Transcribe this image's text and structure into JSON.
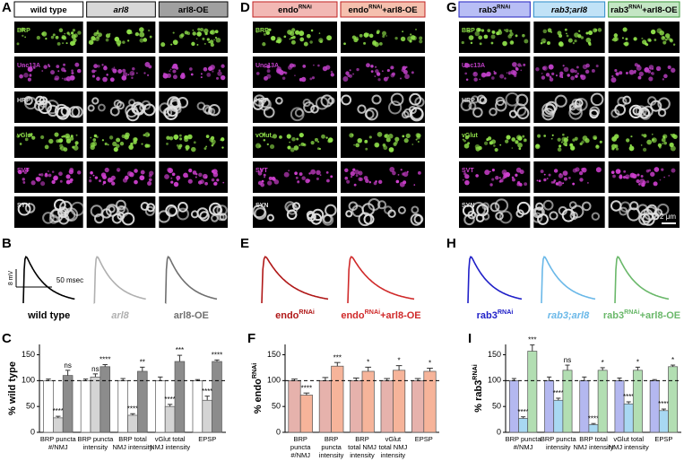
{
  "channels": [
    {
      "name": "BRP",
      "color": "#8fe04a"
    },
    {
      "name": "Unc13A",
      "color": "#c040c8"
    },
    {
      "name": "HRP",
      "color": "#e0e0e0"
    },
    {
      "name": "vGlut",
      "color": "#8fe04a"
    },
    {
      "name": "SVT",
      "color": "#d040d0"
    },
    {
      "name": "SYN",
      "color": "#e0e0e0"
    }
  ],
  "imaging": [
    {
      "letter": "A",
      "headers": [
        {
          "parts": [
            "wild type"
          ],
          "fill": "#ffffff",
          "border": "#000000"
        },
        {
          "parts": [
            "arl8"
          ],
          "italic": true,
          "fill": "#d8d8d8",
          "border": "#000000"
        },
        {
          "parts": [
            "arl8-OE"
          ],
          "fill": "#a0a0a0",
          "border": "#000000"
        }
      ]
    },
    {
      "letter": "D",
      "headers": [
        {
          "parts": [
            "endo",
            "RNAi"
          ],
          "fill": "#f2b8b4",
          "border": "#c02020"
        },
        {
          "parts": [
            "endo",
            "RNAi",
            "+arl8-OE"
          ],
          "fill": "#f5c0ae",
          "border": "#c02020"
        }
      ]
    },
    {
      "letter": "G",
      "headers": [
        {
          "parts": [
            "rab3",
            "RNAi"
          ],
          "fill": "#b8bef5",
          "border": "#2020c0"
        },
        {
          "parts": [
            "rab3;arl8"
          ],
          "italic": true,
          "fill": "#c0e2f7",
          "border": "#2a8ac8"
        },
        {
          "parts": [
            "rab3",
            "RNAi",
            "+arl8-OE"
          ],
          "fill": "#c4e6c4",
          "border": "#3a9a3a"
        }
      ],
      "scale_bar": "2 μm"
    }
  ],
  "traces": [
    {
      "letter": "B",
      "scale_y": "8 mV",
      "scale_x": "50 msec",
      "items": [
        {
          "parts": [
            "wild type"
          ],
          "color": "#000000"
        },
        {
          "parts": [
            "arl8"
          ],
          "italic": true,
          "color": "#b0b0b0"
        },
        {
          "parts": [
            "arl8-OE"
          ],
          "color": "#707070"
        }
      ]
    },
    {
      "letter": "E",
      "items": [
        {
          "parts": [
            "endo",
            "RNAi"
          ],
          "color": "#b01818"
        },
        {
          "parts": [
            "endo",
            "RNAi",
            "+arl8-OE"
          ],
          "color": "#d02a2a"
        }
      ]
    },
    {
      "letter": "H",
      "items": [
        {
          "parts": [
            "rab3",
            "RNAi"
          ],
          "color": "#2020c8"
        },
        {
          "parts": [
            "rab3;arl8"
          ],
          "italic": true,
          "color": "#6ab8e8"
        },
        {
          "parts": [
            "rab3",
            "RNAi",
            "+arl8-OE"
          ],
          "color": "#6ab86a"
        }
      ]
    }
  ],
  "chart_data": [
    {
      "letter": "C",
      "type": "bar",
      "ylabel": [
        "% wild type"
      ],
      "categories": [
        [
          "BRP puncta",
          "#/NMJ"
        ],
        [
          "BRP puncta",
          "intensity"
        ],
        [
          "BRP total",
          "NMJ intensity"
        ],
        [
          "vGlut total",
          "NMJ intensity"
        ],
        [
          "EPSP"
        ]
      ],
      "ylim": [
        0,
        170
      ],
      "yticks": [
        0,
        50,
        100,
        150
      ],
      "refline": 100,
      "series": [
        {
          "color": "#ffffff",
          "values": [
            100,
            100,
            100,
            100,
            100
          ],
          "errors": [
            3,
            3,
            4,
            7,
            2
          ]
        },
        {
          "color": "#d4d4d4",
          "values": [
            28,
            107,
            33,
            50,
            62
          ],
          "errors": [
            3,
            6,
            3,
            4,
            8
          ],
          "annotations": [
            "****",
            "ns",
            "****",
            "****",
            "****"
          ]
        },
        {
          "color": "#8c8c8c",
          "values": [
            110,
            127,
            118,
            137,
            137
          ],
          "errors": [
            10,
            4,
            8,
            12,
            3
          ],
          "annotations": [
            "ns",
            "****",
            "**",
            "***",
            "****"
          ]
        }
      ]
    },
    {
      "letter": "F",
      "type": "bar",
      "ylabel": [
        "% endo",
        "RNAi"
      ],
      "categories": [
        [
          "BRP",
          "puncta",
          "#/NMJ"
        ],
        [
          "BRP",
          "puncta",
          "intensity"
        ],
        [
          "BRP",
          "total NMJ",
          "intensity"
        ],
        [
          "vGlut",
          "total NMJ",
          "intensity"
        ],
        [
          "EPSP"
        ]
      ],
      "ylim": [
        0,
        170
      ],
      "yticks": [
        0,
        50,
        100,
        150
      ],
      "refline": 100,
      "series": [
        {
          "color": "#e6b2ac",
          "values": [
            100,
            100,
            100,
            100,
            100
          ],
          "errors": [
            3,
            6,
            5,
            4,
            4
          ]
        },
        {
          "color": "#f6b49a",
          "values": [
            72,
            128,
            118,
            120,
            118
          ],
          "errors": [
            4,
            7,
            8,
            9,
            6
          ],
          "annotations": [
            "****",
            "***",
            "*",
            "*",
            "*"
          ]
        }
      ]
    },
    {
      "letter": "I",
      "type": "bar",
      "ylabel": [
        "% rab3",
        "RNAi"
      ],
      "categories": [
        [
          "BRP puncta",
          "#/NMJ"
        ],
        [
          "BRP puncta",
          "intensity"
        ],
        [
          "BRP total",
          "NMJ intensity"
        ],
        [
          "vGlut total",
          "NMJ intensity"
        ],
        [
          "EPSP"
        ]
      ],
      "ylim": [
        0,
        170
      ],
      "yticks": [
        0,
        50,
        100,
        150
      ],
      "refline": 100,
      "series": [
        {
          "color": "#b4b8f0",
          "values": [
            100,
            100,
            100,
            100,
            100
          ],
          "errors": [
            4,
            7,
            7,
            5,
            2
          ]
        },
        {
          "color": "#a8d8f2",
          "values": [
            27,
            62,
            15,
            55,
            42
          ],
          "errors": [
            3,
            4,
            2,
            4,
            3
          ],
          "annotations": [
            "****",
            "****",
            "****",
            "****",
            "****"
          ]
        },
        {
          "color": "#b2deb2",
          "values": [
            157,
            120,
            120,
            120,
            127
          ],
          "errors": [
            12,
            10,
            5,
            6,
            3
          ],
          "annotations": [
            "***",
            "ns",
            "*",
            "*",
            "*"
          ]
        }
      ]
    }
  ]
}
